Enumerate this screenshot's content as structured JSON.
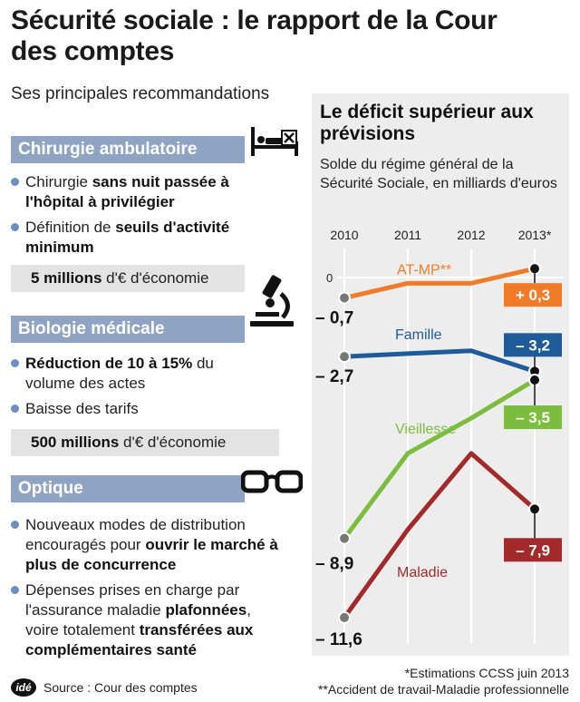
{
  "header": {
    "title": "Sécurité sociale : le rapport de la Cour des comptes",
    "subtitle": "Ses principales recommandations"
  },
  "sections": [
    {
      "heading": "Chirurgie ambulatoire",
      "icon": "hospital-bed-icon",
      "bullets": [
        [
          "Chirurgie ",
          "sans nuit passée à l'hôpital à privilégier"
        ],
        [
          "Définition de ",
          "seuils d'activité minimum"
        ]
      ],
      "saving": [
        "5 millions",
        " d'€ d'économie"
      ]
    },
    {
      "heading": "Biologie médicale",
      "icon": "microscope-icon",
      "bullets": [
        [
          "",
          "Réduction de 10 à 15%",
          " du volume des actes"
        ],
        [
          "Baisse des tarifs"
        ]
      ],
      "saving": [
        "500 millions",
        " d'€ d'économie"
      ]
    },
    {
      "heading": "Optique",
      "icon": "glasses-icon",
      "bullets": [
        [
          "Nouveaux modes de distribution encouragés pour ",
          "ouvrir le marché à plus de concurrence"
        ],
        [
          "Dépenses prises en charge par l'assurance maladie ",
          "plafonnées",
          ", voire totalement ",
          "transférées aux complémentaires santé"
        ]
      ]
    }
  ],
  "chart_data": {
    "type": "line",
    "title": "Le déficit supérieur aux prévisions",
    "subtitle": "Solde du régime général de la Sécurité Sociale, en milliards d'euros",
    "x": [
      "2010",
      "2011",
      "2012",
      "2013*"
    ],
    "zero_label": "0",
    "ylim": [
      -12.5,
      0.8
    ],
    "series": [
      {
        "name": "AT-MP**",
        "color": "#f07c2a",
        "values": [
          -0.7,
          -0.2,
          -0.2,
          0.3
        ],
        "start_label": "– 0,7",
        "end_label": "+ 0,3"
      },
      {
        "name": "Famille",
        "color": "#1f5b9a",
        "values": [
          -2.7,
          -2.6,
          -2.5,
          -3.2
        ],
        "start_label": "– 2,7",
        "end_label": "– 3,2"
      },
      {
        "name": "Vieillesse",
        "color": "#7cbd3e",
        "values": [
          -8.9,
          -6.0,
          -4.8,
          -3.5
        ],
        "start_label": "– 8,9",
        "end_label": "– 3,5"
      },
      {
        "name": "Maladie",
        "color": "#a22a2a",
        "values": [
          -11.6,
          -8.6,
          -6.0,
          -7.9
        ],
        "start_label": "– 11,6",
        "end_label": "– 7,9"
      }
    ]
  },
  "footer": {
    "logo": "idé",
    "source": "Source : Cour des comptes",
    "note1": "*Estimations CCSS juin 2013",
    "note2": "**Accident de travail-Maladie professionnelle"
  }
}
